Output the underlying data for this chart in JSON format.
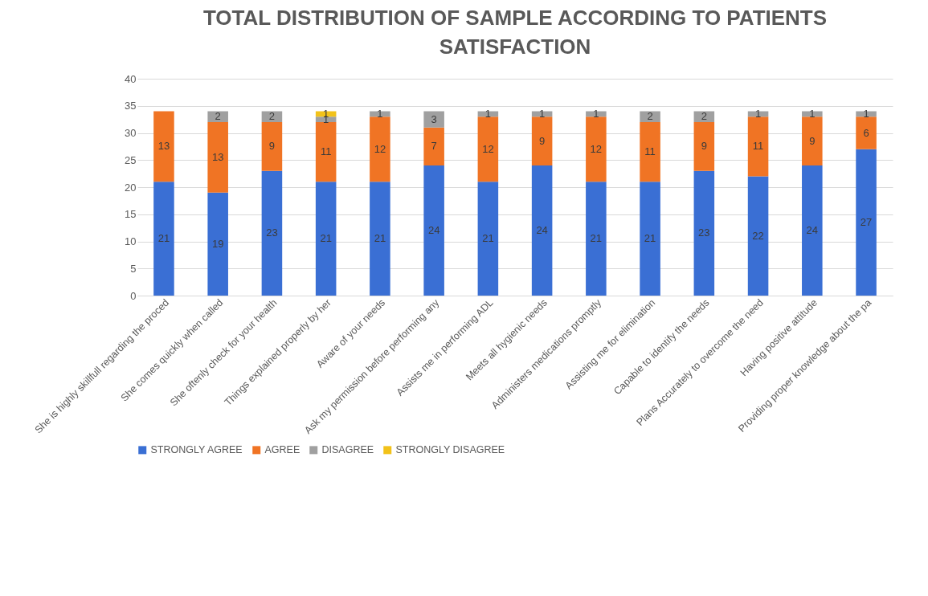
{
  "chart_data": {
    "type": "bar",
    "title": "TOTAL DISTRIBUTION OF SAMPLE ACCORDING TO PATIENTS SATISFACTION",
    "categories": [
      "She is highly skillfull regarding the proced",
      "She comes quickly when called",
      "She oftenly check for your health",
      "Things explained properly by her",
      "Aware of your needs",
      "Ask my permission before performing any",
      "Assists me in performing ADL",
      "Meets all hygienic needs",
      "Administers medications promptly",
      "Assisting me for elimination",
      "Capable to identify the needs",
      "Plans Accurately to overcome the need",
      "Having positive attitude",
      "Providing proper knowledge about the pa"
    ],
    "series": [
      {
        "name": "STRONGLY AGREE",
        "color": "#3a6fd4",
        "values": [
          21,
          19,
          23,
          21,
          21,
          24,
          21,
          24,
          21,
          21,
          23,
          22,
          24,
          27
        ]
      },
      {
        "name": "AGREE",
        "color": "#f07424",
        "values": [
          13,
          13,
          9,
          11,
          12,
          7,
          12,
          9,
          12,
          11,
          9,
          11,
          9,
          6
        ]
      },
      {
        "name": "DISAGREE",
        "color": "#a0a0a0",
        "values": [
          null,
          2,
          2,
          1,
          1,
          3,
          1,
          1,
          1,
          2,
          2,
          1,
          1,
          1
        ]
      },
      {
        "name": "STRONGLY DISAGREE",
        "color": "#f2c21a",
        "values": [
          null,
          null,
          null,
          1,
          null,
          null,
          null,
          null,
          null,
          null,
          null,
          null,
          null,
          null
        ]
      }
    ],
    "stacked": true,
    "data_labels": true,
    "ylim": [
      0,
      40
    ],
    "yticks": [
      0,
      5,
      10,
      15,
      20,
      25,
      30,
      35,
      40
    ],
    "grid": "y",
    "legend": "bottom"
  }
}
